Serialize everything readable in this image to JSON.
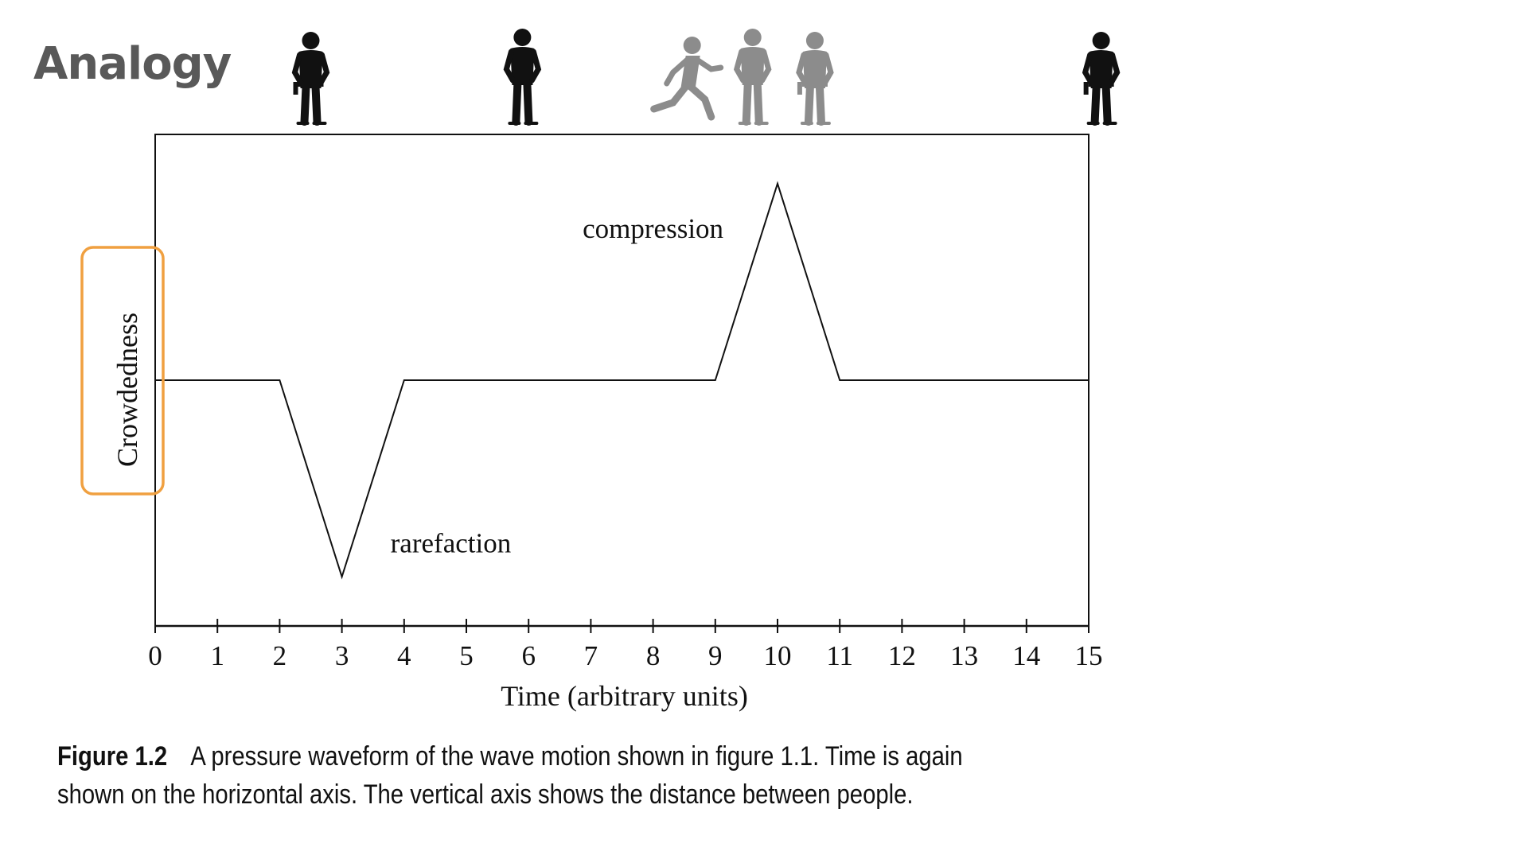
{
  "slide": {
    "title": "Analogy"
  },
  "chart_data": {
    "type": "line",
    "title": "",
    "xlabel": "Time (arbitrary units)",
    "ylabel": "Crowdedness",
    "xlim": [
      0,
      15
    ],
    "ylim": [
      -1,
      1
    ],
    "xticks": [
      0,
      1,
      2,
      3,
      4,
      5,
      6,
      7,
      8,
      9,
      10,
      11,
      12,
      13,
      14,
      15
    ],
    "grid": false,
    "series": [
      {
        "x": [
          0,
          2,
          3,
          4,
          9,
          10,
          11,
          15
        ],
        "y": [
          0,
          0,
          -0.8,
          0,
          0,
          0.8,
          0,
          0
        ]
      }
    ],
    "annotations": [
      {
        "text": "compression",
        "x": 8,
        "y": 0.58
      },
      {
        "text": "rarefaction",
        "x": 4.75,
        "y": -0.7
      }
    ],
    "highlight": {
      "target": "ylabel",
      "color": "#F0A040"
    },
    "colors": {
      "line": "#111111",
      "axis": "#111111"
    }
  },
  "figures": [
    {
      "icon": "woman-tool-belt-icon",
      "time": 2.5,
      "color": "#111111"
    },
    {
      "icon": "man-standing-icon",
      "time": 5.9,
      "color": "#111111"
    },
    {
      "icon": "running-child-icon",
      "time": 8.5,
      "color": "#8C8C8C"
    },
    {
      "icon": "man-standing-icon",
      "time": 9.6,
      "color": "#8C8C8C"
    },
    {
      "icon": "woman-tool-belt-icon",
      "time": 10.6,
      "color": "#8C8C8C"
    },
    {
      "icon": "woman-tool-belt-icon",
      "time": 15.2,
      "color": "#111111"
    }
  ],
  "caption": {
    "label": "Figure 1.2",
    "text": "A pressure waveform of the wave motion shown in figure 1.1. Time is again shown on the horizontal axis. The vertical axis shows the distance between people."
  }
}
